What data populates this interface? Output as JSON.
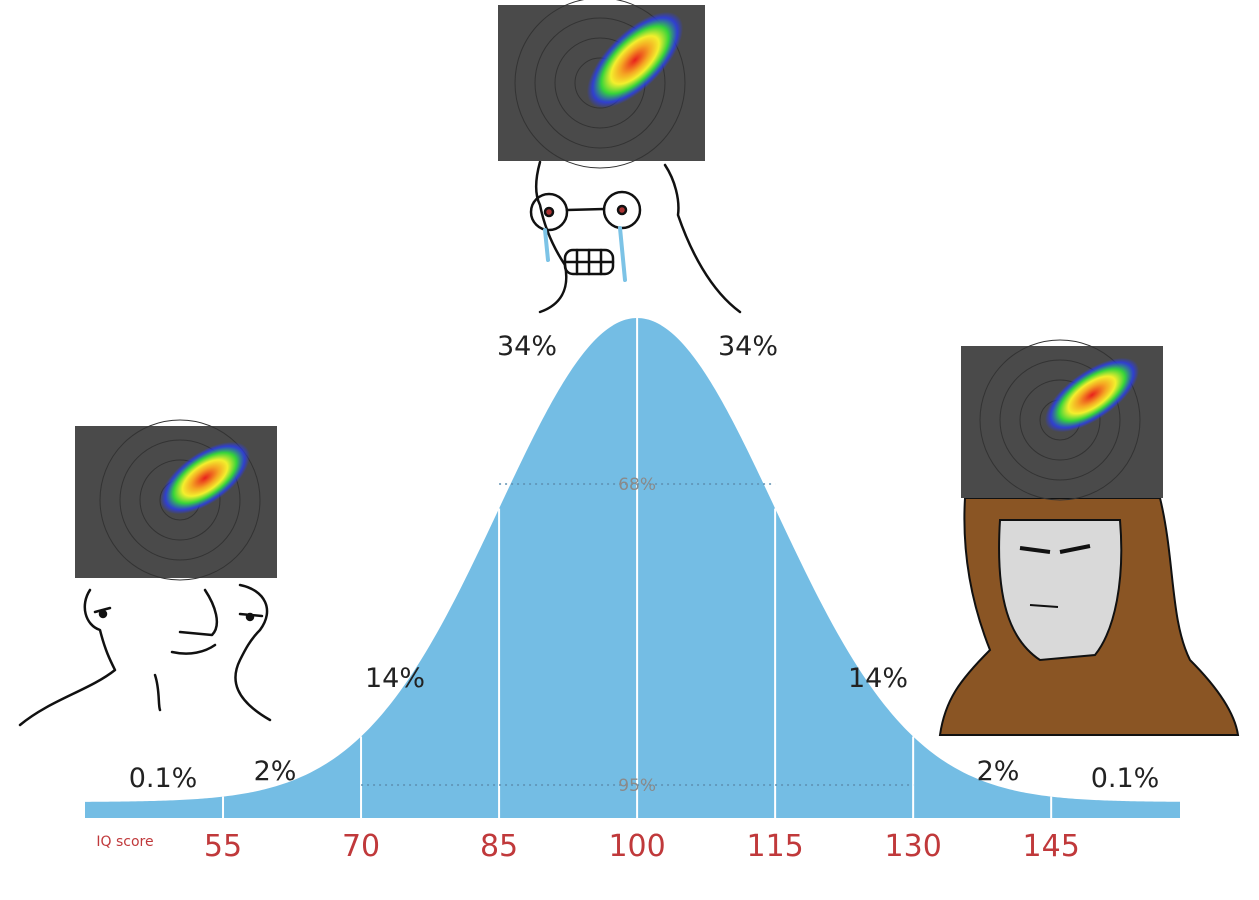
{
  "chart_data": {
    "type": "bell-curve",
    "x_label": "IQ score",
    "xlim": [
      40,
      159
    ],
    "xticks": [
      55,
      70,
      85,
      100,
      115,
      130,
      145
    ],
    "values": [
      0.1,
      2,
      14,
      34,
      34,
      14,
      2,
      0.1
    ],
    "value_labels": [
      "0.1%",
      "2%",
      "14%",
      "34%",
      "34%",
      "14%",
      "2%",
      "0.1%"
    ],
    "intervals": [
      {
        "value": 68,
        "label": "68%"
      },
      {
        "value": 95,
        "label": "95%"
      }
    ],
    "color": "#74bde4",
    "tick_color": "#c0393b"
  }
}
